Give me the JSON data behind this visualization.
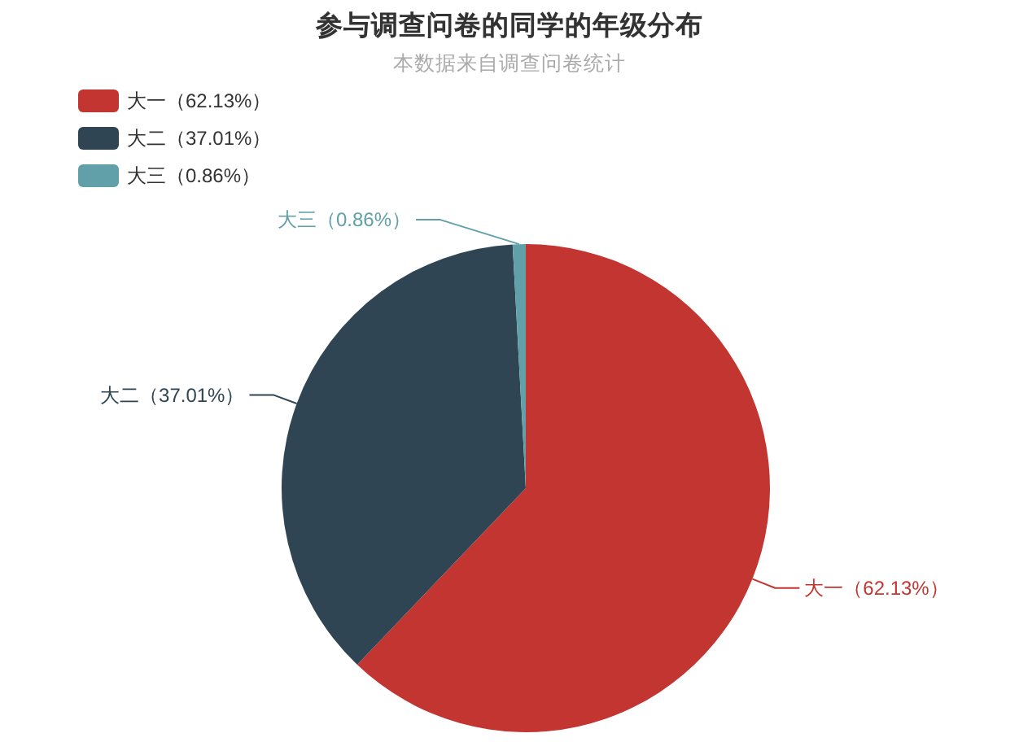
{
  "chart_data": {
    "type": "pie",
    "title": "参与调查问卷的同学的年级分布",
    "subtitle": "本数据来自调查问卷统计",
    "categories": [
      "大一（62.13%）",
      "大二（37.01%）",
      "大三（0.86%）"
    ],
    "values": [
      62.13,
      37.01,
      0.86
    ],
    "colors": [
      "#c23531",
      "#2f4554",
      "#61a0a8"
    ],
    "legend": "top left"
  }
}
